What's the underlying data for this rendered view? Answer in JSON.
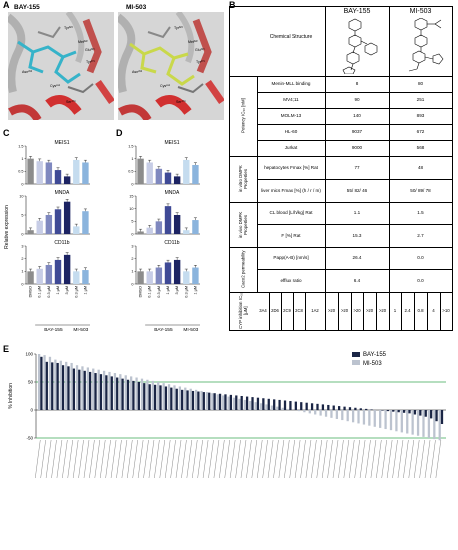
{
  "panels": {
    "A": "A",
    "B": "B",
    "C": "C",
    "D": "D",
    "E": "E"
  },
  "panelA": {
    "left_title": "BAY-155",
    "right_title": "MI-503",
    "left_labels": [
      "Tyr³²³",
      "Met³²²",
      "Glu³⁶³",
      "Tyr²⁷⁶",
      "Asn²⁸²",
      "Cys²⁴¹",
      "Ser¹⁷⁸"
    ],
    "right_labels": [
      "Tyr³²³",
      "Met³²²",
      "Glu³⁶³",
      "Tyr²⁷⁶",
      "Asn²⁸²",
      "Cys²⁴¹",
      "Ser¹⁷⁸"
    ]
  },
  "tableB": {
    "col_bay": "BAY-155",
    "col_mi": "MI-503",
    "structure_label": "Chemical Structure",
    "potency_header": "Potency IC₅₀ [nM]",
    "potency_rows": [
      {
        "label": "Menin-MLL binding",
        "bay": "8",
        "mi": "80"
      },
      {
        "label": "MV4;11",
        "bay": "90",
        "mi": "251"
      },
      {
        "label": "MOLM-13",
        "bay": "140",
        "mi": "893"
      },
      {
        "label": "HL-60",
        "bay": "9037",
        "mi": "672"
      },
      {
        "label": "Jurkat",
        "bay": "9000",
        "mi": "568"
      }
    ],
    "invitro_header": "in vitro DMPK Properties",
    "invitro_rows": [
      {
        "label": "hepatocytes Fmax [%] Rat",
        "bay": "77",
        "mi": "48"
      },
      {
        "label": "liver mics Fmax [%] (h / r / m)",
        "bay": "55/ 82/ 46",
        "mi": "50/ 89/ 78"
      }
    ],
    "invivo_header": "in vivo DMPK Properties",
    "invivo_rows": [
      {
        "label": "CL blood [L/h/kg] Rat",
        "bay": "1.1",
        "mi": "1.5"
      },
      {
        "label": "F [%] Rat",
        "bay": "15.3",
        "mi": "2.7"
      }
    ],
    "caco_header": "Caco2 permeability",
    "caco_rows": [
      {
        "label": "Papp(A-B) [nm/s]",
        "bay": "26.4",
        "mi": "0.0"
      },
      {
        "label": "efflux ratio",
        "bay": "6.4",
        "mi": "0.0"
      }
    ],
    "cyp_header": "CYP inhibition IC₅₀ [µM]",
    "cyp_isoforms": [
      "3A4",
      "2D6",
      "2C9",
      "2C8",
      "1A2"
    ],
    "cyp_bay": [
      ">20",
      ">20",
      ">20",
      ">20",
      ">20"
    ],
    "cyp_mi": [
      "1",
      "2.4",
      "0.8",
      "4",
      ">10"
    ]
  },
  "panelC": {
    "ylabel": "Relative expression",
    "genes": [
      "MEIS1",
      "MNDA",
      "CD11b"
    ],
    "xticks": [
      "DMSO",
      "0.1 µM",
      "0.3 µM",
      "1 µM",
      "3 µM",
      "0.3 µM",
      "1 µM"
    ],
    "group_bay": "BAY-155",
    "group_mi": "MI-503"
  },
  "panelD": {
    "genes": [
      "MEIS1",
      "MNDA",
      "CD11b"
    ],
    "xticks": [
      "DMSO",
      "0.1 µM",
      "0.3 µM",
      "1 µM",
      "3 µM",
      "0.3 µM",
      "1 µM"
    ],
    "group_bay": "BAY-155",
    "group_mi": "MI-503"
  },
  "colors": {
    "dmso": "#8c8c8c",
    "bay": [
      "#c7cde6",
      "#7f88bf",
      "#3f4a96",
      "#1c2363"
    ],
    "mi": [
      "#c5dcef",
      "#8bb4dd"
    ],
    "bay_e": "#1a2545",
    "mi_e": "#bcc3cf",
    "green": "#3aa655"
  },
  "chart_data": [
    {
      "type": "bar",
      "id": "C",
      "categories": [
        "DMSO",
        "0.1 µM",
        "0.3 µM",
        "1 µM",
        "3 µM",
        "0.3 µM",
        "1 µM"
      ],
      "subplots": [
        {
          "title": "MEIS1",
          "ylim": [
            0,
            1.5
          ],
          "yticks": [
            0,
            0.5,
            1,
            1.5
          ],
          "values": [
            1.0,
            0.9,
            0.85,
            0.55,
            0.3,
            0.95,
            0.85
          ]
        },
        {
          "title": "MNDA",
          "ylim": [
            0,
            10
          ],
          "yticks": [
            0,
            5,
            10
          ],
          "values": [
            1.0,
            3.5,
            5.0,
            6.5,
            8.5,
            2.0,
            6.0
          ]
        },
        {
          "title": "CD11b",
          "ylim": [
            0,
            3
          ],
          "yticks": [
            0,
            1,
            2,
            3
          ],
          "values": [
            1.0,
            1.2,
            1.5,
            1.9,
            2.3,
            1.0,
            1.1
          ]
        }
      ]
    },
    {
      "type": "bar",
      "id": "D",
      "categories": [
        "DMSO",
        "0.1 µM",
        "0.3 µM",
        "1 µM",
        "3 µM",
        "0.3 µM",
        "1 µM"
      ],
      "subplots": [
        {
          "title": "MEIS1",
          "ylim": [
            0,
            1.5
          ],
          "yticks": [
            0,
            0.5,
            1,
            1.5
          ],
          "values": [
            1.0,
            0.85,
            0.6,
            0.45,
            0.3,
            0.95,
            0.75
          ]
        },
        {
          "title": "MNDA",
          "ylim": [
            0,
            15
          ],
          "yticks": [
            0,
            5,
            10,
            15
          ],
          "values": [
            1.0,
            2.5,
            5.0,
            11.0,
            7.5,
            1.5,
            5.5
          ]
        },
        {
          "title": "CD11b",
          "ylim": [
            0,
            3
          ],
          "yticks": [
            0,
            1,
            2,
            3
          ],
          "values": [
            1.0,
            1.0,
            1.3,
            1.7,
            1.9,
            1.0,
            1.3
          ]
        }
      ]
    },
    {
      "type": "bar",
      "id": "E",
      "ylabel": "% Inhibition",
      "ylim": [
        -50,
        100
      ],
      "yticks": [
        -50,
        0,
        50,
        100
      ],
      "reference_lines": [
        50,
        -50
      ],
      "series": [
        {
          "name": "BAY-155",
          "values": [
            95,
            86,
            85,
            84,
            80,
            78,
            74,
            72,
            70,
            68,
            66,
            64,
            62,
            60,
            58,
            56,
            54,
            52,
            50,
            48,
            46,
            45,
            44,
            42,
            40,
            38,
            36,
            35,
            34,
            33,
            32,
            31,
            30,
            29,
            28,
            27,
            26,
            25,
            24,
            23,
            22,
            21,
            20,
            19,
            18,
            17,
            16,
            15,
            14,
            13,
            12,
            11,
            10,
            9,
            8,
            7,
            6,
            5,
            4,
            3,
            2,
            1,
            0,
            -1,
            -2,
            -3,
            -4,
            -5,
            -6,
            -8,
            -10,
            -12,
            -15,
            -20,
            -25
          ]
        },
        {
          "name": "MI-503",
          "values": [
            100,
            98,
            95,
            90,
            88,
            86,
            84,
            80,
            78,
            76,
            74,
            72,
            70,
            68,
            66,
            64,
            62,
            60,
            58,
            56,
            54,
            52,
            50,
            48,
            46,
            44,
            42,
            40,
            38,
            36,
            34,
            32,
            30,
            28,
            26,
            24,
            22,
            20,
            18,
            16,
            14,
            12,
            10,
            8,
            6,
            4,
            2,
            0,
            -2,
            -4,
            -6,
            -8,
            -10,
            -12,
            -14,
            -16,
            -18,
            -20,
            -22,
            -24,
            -26,
            -28,
            -30,
            -32,
            -34,
            -36,
            -38,
            -40,
            -42,
            -44,
            -46,
            -48,
            -50,
            -52,
            -54
          ]
        }
      ],
      "legend_position": "top-right"
    }
  ]
}
